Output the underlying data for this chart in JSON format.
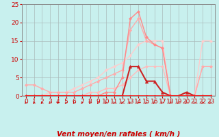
{
  "xlabel": "Vent moyen/en rafales ( km/h )",
  "xlim": [
    -0.5,
    23.5
  ],
  "ylim": [
    0,
    25
  ],
  "yticks": [
    0,
    5,
    10,
    15,
    20,
    25
  ],
  "xticks": [
    0,
    1,
    2,
    3,
    4,
    5,
    6,
    7,
    8,
    9,
    10,
    11,
    12,
    13,
    14,
    15,
    16,
    17,
    18,
    19,
    20,
    21,
    22,
    23
  ],
  "background_color": "#c8f0ee",
  "grid_color": "#aabbbb",
  "series": [
    {
      "x": [
        0,
        1,
        2,
        3,
        4,
        5,
        6,
        7,
        8,
        9,
        10,
        11,
        12,
        13,
        14,
        15,
        16,
        17,
        18,
        19,
        20,
        21,
        22,
        23
      ],
      "y": [
        0,
        0,
        0,
        0,
        0,
        0,
        0,
        0,
        1,
        1,
        2,
        2,
        3,
        5,
        7,
        8,
        8,
        8,
        0,
        0,
        0,
        0,
        8,
        8
      ],
      "color": "#ffbbbb",
      "marker": "D",
      "markersize": 2,
      "linewidth": 1.0
    },
    {
      "x": [
        0,
        1,
        2,
        3,
        4,
        5,
        6,
        7,
        8,
        9,
        10,
        11,
        12,
        13,
        14,
        15,
        16,
        17,
        18,
        19,
        20,
        21,
        22,
        23
      ],
      "y": [
        0,
        0,
        0,
        1,
        1,
        1,
        2,
        3,
        4,
        5,
        7,
        8,
        9,
        11,
        14,
        15,
        15,
        15,
        0,
        0,
        0,
        0,
        15,
        15
      ],
      "color": "#ffcccc",
      "marker": "D",
      "markersize": 2,
      "linewidth": 1.0
    },
    {
      "x": [
        0,
        1,
        2,
        3,
        4,
        5,
        6,
        7,
        8,
        9,
        10,
        11,
        12,
        13,
        14,
        15,
        16,
        17,
        18,
        19,
        20,
        21,
        22,
        23
      ],
      "y": [
        3,
        3,
        2,
        1,
        1,
        1,
        1,
        2,
        3,
        4,
        5,
        6,
        7,
        18,
        21,
        15,
        14,
        13,
        0,
        0,
        0,
        0,
        8,
        8
      ],
      "color": "#ffaaaa",
      "marker": "D",
      "markersize": 2,
      "linewidth": 1.0
    },
    {
      "x": [
        0,
        1,
        2,
        3,
        4,
        5,
        6,
        7,
        8,
        9,
        10,
        11,
        12,
        13,
        14,
        15,
        16,
        17,
        18,
        19,
        20,
        21,
        22,
        23
      ],
      "y": [
        0,
        0,
        0,
        0,
        0,
        0,
        0,
        0,
        0,
        0,
        1,
        1,
        5,
        21,
        23,
        16,
        14,
        13,
        0,
        0,
        0,
        0,
        0,
        0
      ],
      "color": "#ff8888",
      "marker": "D",
      "markersize": 2,
      "linewidth": 1.0
    },
    {
      "x": [
        0,
        1,
        2,
        3,
        4,
        5,
        6,
        7,
        8,
        9,
        10,
        11,
        12,
        13,
        14,
        15,
        16,
        17,
        18,
        19,
        20,
        21,
        22,
        23
      ],
      "y": [
        0,
        0,
        0,
        0,
        0,
        0,
        0,
        0,
        0,
        0,
        0,
        0,
        0,
        8,
        8,
        4,
        4,
        1,
        0,
        0,
        1,
        0,
        0,
        0
      ],
      "color": "#cc2222",
      "marker": "^",
      "markersize": 3,
      "linewidth": 1.5
    },
    {
      "x": [
        0,
        1,
        2,
        3,
        4,
        5,
        6,
        7,
        8,
        9,
        10,
        11,
        12,
        13,
        14,
        15,
        16,
        17,
        18,
        19,
        20,
        21,
        22,
        23
      ],
      "y": [
        0,
        0,
        0,
        0,
        0,
        0,
        0,
        0,
        0,
        0,
        0,
        0,
        0,
        0,
        0,
        0,
        0,
        0,
        0,
        0,
        0,
        0,
        0,
        0
      ],
      "color": "#ff2222",
      "marker": "s",
      "markersize": 2,
      "linewidth": 1.2
    }
  ],
  "xlabel_color": "#cc0000",
  "tick_color": "#cc0000",
  "xlabel_fontsize": 7.5,
  "tick_fontsize": 6.5
}
